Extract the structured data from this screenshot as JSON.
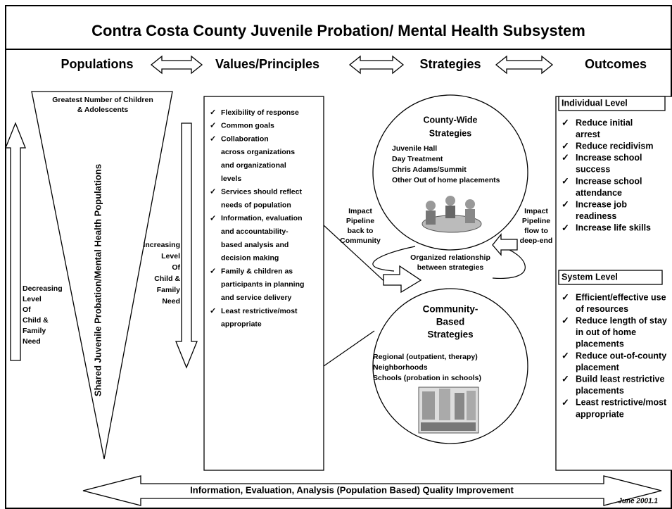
{
  "title": "Contra Costa County Juvenile Probation/ Mental Health Subsystem",
  "headers": [
    "Populations",
    "Values/Principles",
    "Strategies",
    "Outcomes"
  ],
  "populations": {
    "triangle_top": [
      "Greatest Number of Children",
      "& Adolescents"
    ],
    "triangle_side": "Shared Juvenile Probation/Mental Health Populations",
    "decreasing": [
      "Decreasing",
      "Level",
      "Of",
      "Child &",
      "Family",
      "Need"
    ],
    "increasing": [
      "Increasing",
      "Level",
      "Of",
      "Child &",
      "Family",
      "Need"
    ]
  },
  "values": {
    "items": [
      [
        "Flexibility of response"
      ],
      [
        "Common goals"
      ],
      [
        "Collaboration",
        "across organizations",
        "and organizational",
        "levels"
      ],
      [
        "Services should reflect",
        "needs of population"
      ],
      [
        "Information, evaluation",
        "and accountability-",
        "based analysis and",
        "decision making"
      ],
      [
        "Family & children as",
        "participants in planning",
        "and service delivery"
      ],
      [
        "Least restrictive/most",
        "appropriate"
      ]
    ]
  },
  "strategies": {
    "county": {
      "title": [
        "County-Wide",
        "Strategies"
      ],
      "items": [
        "Juvenile Hall",
        "Day Treatment",
        "Chris Adams/Summit",
        "Other Out of home placements"
      ]
    },
    "community": {
      "title": [
        "Community-",
        "Based",
        "Strategies"
      ],
      "items": [
        "Regional (outpatient, therapy)",
        "Neighborhoods",
        "Schools (probation in schools)"
      ]
    },
    "impact_back": [
      "Impact",
      "Pipeline",
      "back to",
      "Community"
    ],
    "impact_flow": [
      "Impact",
      "Pipeline",
      "flow to",
      "deep-end"
    ],
    "relationship": [
      "Organized relationship",
      "between strategies"
    ]
  },
  "outcomes": {
    "individual": {
      "title": "Individual Level",
      "items": [
        [
          "Reduce initial",
          "arrest"
        ],
        [
          "Reduce recidivism"
        ],
        [
          "Increase school",
          "success"
        ],
        [
          "Increase school",
          "attendance"
        ],
        [
          "Increase job",
          "readiness"
        ],
        [
          "Increase life skills"
        ]
      ]
    },
    "system": {
      "title": "System Level",
      "items": [
        [
          "Efficient/effective use",
          "of resources"
        ],
        [
          "Reduce length of stay",
          "in out of home",
          "placements"
        ],
        [
          "Reduce out-of-county",
          "placement"
        ],
        [
          "Build least restrictive",
          "placements"
        ],
        [
          "Least restrictive/most",
          "appropriate"
        ]
      ]
    }
  },
  "footer": {
    "banner": "Information, Evaluation, Analysis (Population Based) Quality Improvement",
    "date": "June 2001.1"
  }
}
